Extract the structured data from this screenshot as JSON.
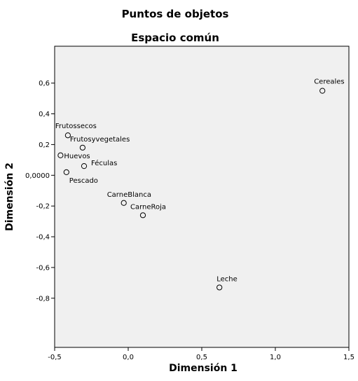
{
  "chart_data": {
    "type": "scatter",
    "title": "Puntos de objetos",
    "subtitle": "Espacio común",
    "xlabel": "Dimensión 1",
    "ylabel": "Dimensión 2",
    "xlim": [
      -0.5,
      1.5
    ],
    "ylim": [
      -1.12,
      0.84
    ],
    "grid": false,
    "x_ticks": [
      {
        "value": -0.5,
        "label": "-0,5"
      },
      {
        "value": 0.0,
        "label": "0,0"
      },
      {
        "value": 0.5,
        "label": "0,5"
      },
      {
        "value": 1.0,
        "label": "1,0"
      },
      {
        "value": 1.5,
        "label": "1,5"
      }
    ],
    "y_ticks": [
      {
        "value": 0.6,
        "label": "0,6"
      },
      {
        "value": 0.4,
        "label": "0,4"
      },
      {
        "value": 0.2,
        "label": "0,2"
      },
      {
        "value": 0.0,
        "label": "0,0000"
      },
      {
        "value": -0.2,
        "label": "-0,2"
      },
      {
        "value": -0.4,
        "label": "-0,4"
      },
      {
        "value": -0.6,
        "label": "-0,6"
      },
      {
        "value": -0.8,
        "label": "-0,8"
      }
    ],
    "points": [
      {
        "name": "Cereales",
        "x": 1.32,
        "y": 0.55
      },
      {
        "name": "Frutossecos",
        "x": -0.41,
        "y": 0.26
      },
      {
        "name": "Frutosyvegetales",
        "x": -0.31,
        "y": 0.18
      },
      {
        "name": "Huevos",
        "x": -0.46,
        "y": 0.13
      },
      {
        "name": "Féculas",
        "x": -0.3,
        "y": 0.06
      },
      {
        "name": "Pescado",
        "x": -0.42,
        "y": 0.02
      },
      {
        "name": "CarneBlanca",
        "x": -0.03,
        "y": -0.18
      },
      {
        "name": "CarneRoja",
        "x": 0.1,
        "y": -0.26
      },
      {
        "name": "Leche",
        "x": 0.62,
        "y": -0.73
      }
    ]
  }
}
